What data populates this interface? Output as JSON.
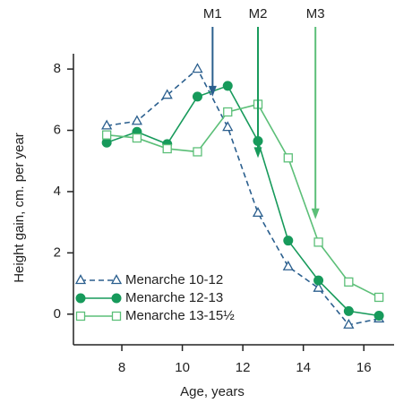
{
  "chart_data": {
    "type": "line",
    "x_label": "Age, years",
    "y_label": "Height gain, cm. per year",
    "xlim": [
      6.4,
      17
    ],
    "ylim": [
      -1,
      8.5
    ],
    "xticks": [
      8,
      10,
      12,
      14,
      16
    ],
    "yticks": [
      0,
      2,
      4,
      6,
      8
    ],
    "legend": "lower left",
    "series": [
      {
        "name": "Menarche 10-12",
        "color": "#2b5f8e",
        "marker": "triangle",
        "dash": true,
        "x": [
          7.5,
          8.5,
          9.5,
          10.5,
          11.5,
          12.5,
          13.5,
          14.5,
          15.5,
          16.5
        ],
        "values": [
          6.15,
          6.3,
          7.15,
          8.0,
          6.1,
          3.3,
          1.55,
          0.85,
          -0.35,
          -0.15
        ]
      },
      {
        "name": "Menarche 12-13",
        "color": "#179a5b",
        "marker": "circle",
        "dash": false,
        "x": [
          7.5,
          8.5,
          9.5,
          10.5,
          11.5,
          12.5,
          13.5,
          14.5,
          15.5,
          16.5
        ],
        "values": [
          5.6,
          5.95,
          5.55,
          7.1,
          7.45,
          5.65,
          2.4,
          1.1,
          0.1,
          -0.05
        ]
      },
      {
        "name": "Menarche 13-15½",
        "color": "#5cbf78",
        "marker": "square",
        "dash": false,
        "x": [
          7.5,
          8.5,
          9.5,
          10.5,
          11.5,
          12.5,
          13.5,
          14.5,
          15.5,
          16.5
        ],
        "values": [
          5.85,
          5.75,
          5.4,
          5.3,
          6.6,
          6.85,
          5.1,
          2.35,
          1.05,
          0.55
        ]
      }
    ],
    "annotations": [
      {
        "text": "M1",
        "x": 11,
        "y": 7.1,
        "color": "#2b5f8e"
      },
      {
        "text": "M2",
        "x": 12.5,
        "y": 5.1,
        "color": "#179a5b"
      },
      {
        "text": "M3",
        "x": 14.4,
        "y": 3.1,
        "color": "#5cbf78"
      }
    ]
  }
}
